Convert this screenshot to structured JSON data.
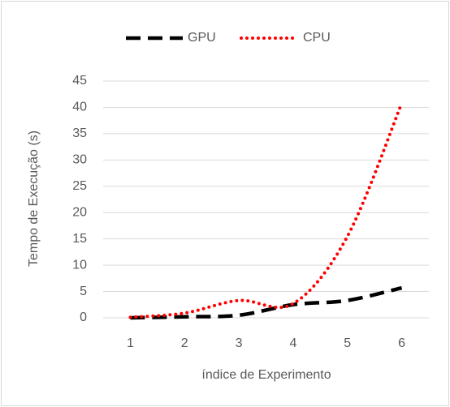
{
  "chart_data": {
    "type": "line",
    "y_label": "Tempo de Execução (s)",
    "x_label": "índice de Experimento",
    "categories": [
      "1",
      "2",
      "3",
      "4",
      "5",
      "6"
    ],
    "series": [
      {
        "name": "GPU",
        "color": "#000000",
        "style": "dashed",
        "values": [
          0,
          0.2,
          0.5,
          2.5,
          3.3,
          5.7
        ]
      },
      {
        "name": "CPU",
        "color": "#ff0000",
        "style": "dotted",
        "values": [
          0.1,
          0.9,
          3.3,
          2.7,
          15.5,
          40.8
        ]
      }
    ],
    "ylim": [
      0,
      45
    ],
    "yticks": [
      0,
      5,
      10,
      15,
      20,
      25,
      30,
      35,
      40,
      45
    ],
    "grid": true,
    "legend": "top"
  }
}
